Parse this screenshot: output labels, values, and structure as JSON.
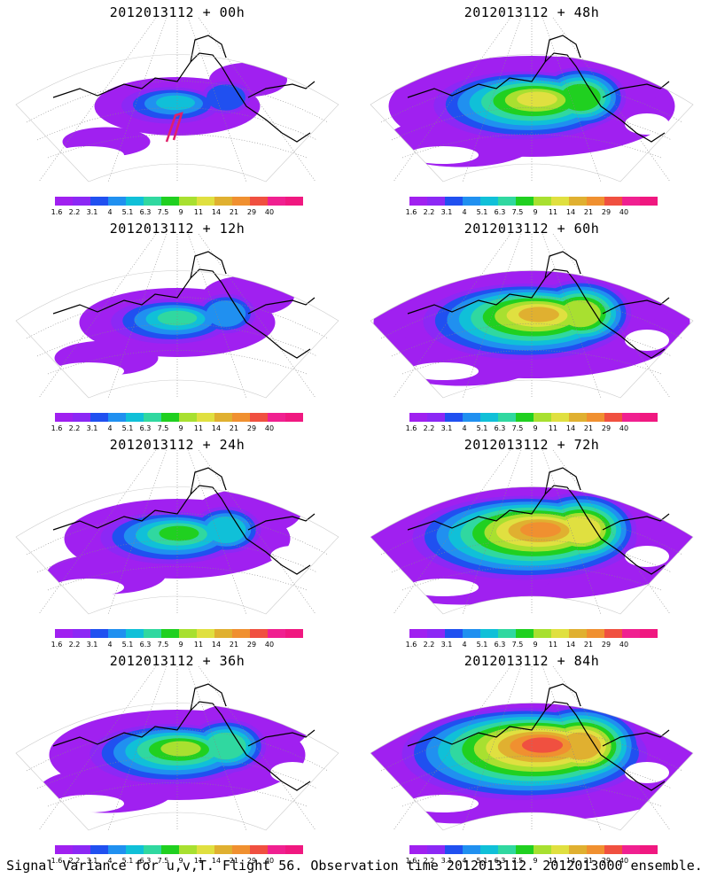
{
  "panels": [
    {
      "title": "2012013112 + 00h",
      "intensity": 0.15
    },
    {
      "title": "2012013112 + 48h",
      "intensity": 0.55
    },
    {
      "title": "2012013112 + 12h",
      "intensity": 0.25
    },
    {
      "title": "2012013112 + 60h",
      "intensity": 0.65
    },
    {
      "title": "2012013112 + 24h",
      "intensity": 0.35
    },
    {
      "title": "2012013112 + 72h",
      "intensity": 0.75
    },
    {
      "title": "2012013112 + 36h",
      "intensity": 0.45
    },
    {
      "title": "2012013112 + 84h",
      "intensity": 0.85
    }
  ],
  "colorbar": {
    "labels": [
      "1.6",
      "2.2",
      "3.1",
      "4",
      "5.1",
      "6.3",
      "7.5",
      "9",
      "11",
      "14",
      "21",
      "29",
      "40"
    ],
    "colors": [
      "#a020f0",
      "#8c28f5",
      "#2050f0",
      "#2090f0",
      "#10c0d8",
      "#30d8a0",
      "#20d020",
      "#a8e030",
      "#e0e040",
      "#e0b030",
      "#f09030",
      "#f05040",
      "#f02090",
      "#f01880"
    ]
  },
  "footer": "Signal Variance for u,v,T. Flight 56. Observation time 2012013112. 2012013000 ensemble.",
  "colors": {
    "background": "#ffffff",
    "coast": "#000000",
    "track": "#e0206a",
    "grid": "#888888"
  }
}
